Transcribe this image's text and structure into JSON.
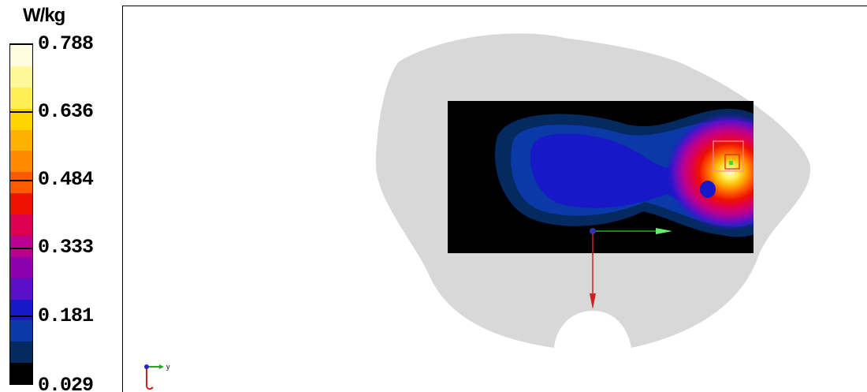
{
  "legend": {
    "unit": "W/kg",
    "labels": [
      "0.788",
      "0.636",
      "0.484",
      "0.333",
      "0.181",
      "0.029"
    ],
    "colors": [
      "#fffde0",
      "#fff79a",
      "#ffee55",
      "#ffd400",
      "#ffb000",
      "#ff8a00",
      "#ff5a00",
      "#ee1100",
      "#dd0050",
      "#bb0090",
      "#8c00b0",
      "#5a10c8",
      "#1818c8",
      "#0a3aa8",
      "#052a60",
      "#000000"
    ]
  },
  "viewport": {
    "phantom_color": "#d8d8d8",
    "axis_triad": {
      "y_label": "y"
    }
  }
}
